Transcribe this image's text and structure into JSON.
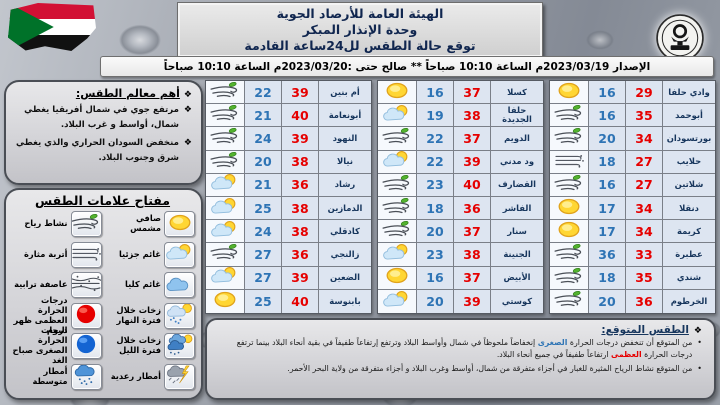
{
  "header": {
    "line1": "الهيئة العامة للأرصاد الجوية",
    "line2": "وحدة الإنذار المبكر",
    "line3": "توقع حالة الطقس لل24ساعة القادمة"
  },
  "issue_bar": {
    "text": "الإصدار 2023/03/19م الساعة 10:10 صباحاً ** صالح حتى :2023/03/20م الساعة 10:10 صباحاً"
  },
  "features": {
    "heading": "أهم معالم الطقس:",
    "bullets": [
      "مرتفع جوي في شمال أفريقيا يغطي شمال، أواسط و غرب البلاد.",
      "منخفض السودان الحراري والذي يغطي شرق وجنوب البلاد."
    ]
  },
  "key": {
    "heading": "مفتاح علامات الطقس",
    "columns": [
      {
        "items": [
          {
            "label": "صافي مشمس",
            "icon": "sun-icon"
          },
          {
            "label": "غائم جزئيا",
            "icon": "partly-cloudy-icon"
          },
          {
            "label": "غائم كليا",
            "icon": "cloudy-icon"
          },
          {
            "label": "زخات خلال فترة النهار",
            "icon": "day-showers-icon"
          },
          {
            "label": "زخات خلال فترة الليل",
            "icon": "night-showers-icon"
          },
          {
            "label": "أمطار رعدية",
            "icon": "thunder-rain-icon"
          }
        ]
      },
      {
        "items": [
          {
            "label": "نشاط رياح",
            "icon": "wind-icon"
          },
          {
            "label": "أتربة مثارة",
            "icon": "dust-icon"
          },
          {
            "label": "عاصفة ترابية",
            "icon": "dust-storm-icon"
          },
          {
            "label": "درجات الحرارة العظمى ظهر اليوم",
            "icon": "max-temp-icon"
          },
          {
            "label": "درجات الحرارة الصغرى صباح الغد",
            "icon": "min-temp-icon"
          },
          {
            "label": "أمطار متوسطة",
            "icon": "moderate-rain-icon"
          }
        ]
      }
    ]
  },
  "table": {
    "groups": [
      {
        "rows": [
          {
            "city": "وادي حلفا",
            "max": 29,
            "min": 16,
            "icon": "sun-icon"
          },
          {
            "city": "أبوحمد",
            "max": 35,
            "min": 16,
            "icon": "wind-icon"
          },
          {
            "city": "بورتسودان",
            "max": 34,
            "min": 20,
            "icon": "wind-icon"
          },
          {
            "city": "حلايب",
            "max": 27,
            "min": 18,
            "icon": "dust-icon"
          },
          {
            "city": "شلاتين",
            "max": 27,
            "min": 16,
            "icon": "wind-icon"
          },
          {
            "city": "دنقلا",
            "max": 34,
            "min": 17,
            "icon": "sun-icon"
          },
          {
            "city": "كريمة",
            "max": 34,
            "min": 17,
            "icon": "sun-icon"
          },
          {
            "city": "عطبرة",
            "max": 33,
            "min": 36,
            "icon": "wind-icon"
          },
          {
            "city": "شندي",
            "max": 35,
            "min": 18,
            "icon": "wind-icon"
          },
          {
            "city": "الخرطوم",
            "max": 36,
            "min": 20,
            "icon": "wind-icon"
          }
        ]
      },
      {
        "rows": [
          {
            "city": "كسلا",
            "max": 37,
            "min": 16,
            "icon": "sun-icon"
          },
          {
            "city": "حلفا الجديدة",
            "max": 38,
            "min": 19,
            "icon": "partly-cloudy-icon"
          },
          {
            "city": "الدويم",
            "max": 37,
            "min": 22,
            "icon": "wind-icon"
          },
          {
            "city": "ود مدني",
            "max": 39,
            "min": 22,
            "icon": "partly-cloudy-icon"
          },
          {
            "city": "القضارف",
            "max": 40,
            "min": 23,
            "icon": "wind-icon"
          },
          {
            "city": "الفاشر",
            "max": 36,
            "min": 18,
            "icon": "wind-icon"
          },
          {
            "city": "سنار",
            "max": 37,
            "min": 20,
            "icon": "wind-icon"
          },
          {
            "city": "الجنينة",
            "max": 38,
            "min": 23,
            "icon": "partly-cloudy-icon"
          },
          {
            "city": "الأبيض",
            "max": 37,
            "min": 16,
            "icon": "sun-icon"
          },
          {
            "city": "كوستي",
            "max": 39,
            "min": 20,
            "icon": "partly-cloudy-icon"
          }
        ]
      },
      {
        "rows": [
          {
            "city": "أم بنين",
            "max": 39,
            "min": 22,
            "icon": "wind-icon"
          },
          {
            "city": "أبونعامة",
            "max": 40,
            "min": 21,
            "icon": "wind-icon"
          },
          {
            "city": "النهود",
            "max": 39,
            "min": 24,
            "icon": "wind-icon"
          },
          {
            "city": "نيالا",
            "max": 38,
            "min": 20,
            "icon": "wind-icon"
          },
          {
            "city": "رشاد",
            "max": 36,
            "min": 21,
            "icon": "partly-cloudy-icon"
          },
          {
            "city": "الدمازين",
            "max": 38,
            "min": 25,
            "icon": "partly-cloudy-icon"
          },
          {
            "city": "كادقلي",
            "max": 38,
            "min": 24,
            "icon": "partly-cloudy-icon"
          },
          {
            "city": "زالنجي",
            "max": 36,
            "min": 27,
            "icon": "wind-icon"
          },
          {
            "city": "الضعين",
            "max": 39,
            "min": 27,
            "icon": "partly-cloudy-icon"
          },
          {
            "city": "بابنوسة",
            "max": 40,
            "min": 25,
            "icon": "sun-icon"
          }
        ]
      }
    ]
  },
  "forecast": {
    "heading": "الطقس المتوقع:",
    "bullet1": {
      "p1": "من المتوقع أن تنخفض درجات الحرارة ",
      "blue": "الصغرى",
      "p2": " إنخفاضاً ملحوظاً في شمال وأواسط البلاد وترتفع إرتفاعاً طفيفاً في بقية أنحاء البلاد بينما ترتفع درجات الحرارة ",
      "red": "العظمى",
      "p3": " ارتفاعاً طفيفاً في جميع أنحاء البلاد."
    },
    "bullet2": "من المتوقع نشاط الرياح المثيرة للغبار في أجزاء متفرقة من شمال، أواسط وغرب البلاد و أجزاء متفرقة من ولاية البحر الأحمر."
  },
  "colors": {
    "max_temp": "#e60000",
    "min_temp": "#2e74b5",
    "city_text": "#17365d"
  }
}
